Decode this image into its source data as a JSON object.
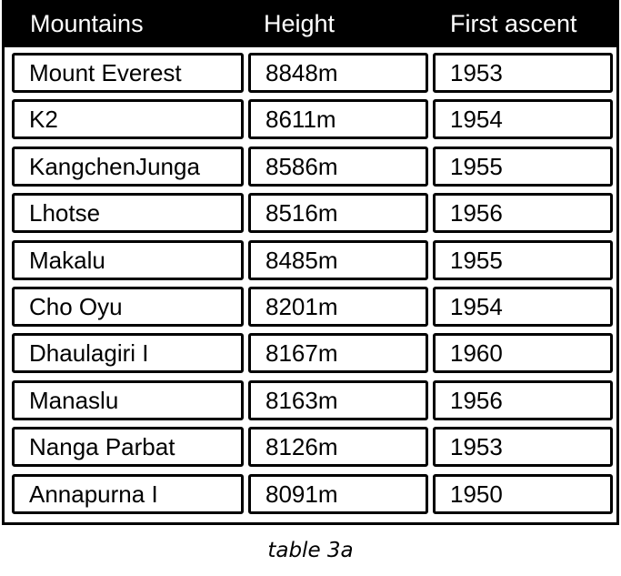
{
  "table": {
    "headers": [
      "Mountains",
      "Height",
      "First ascent"
    ],
    "rows": [
      [
        "Mount Everest",
        "8848m",
        "1953"
      ],
      [
        "K2",
        "8611m",
        "1954"
      ],
      [
        "KangchenJunga",
        "8586m",
        "1955"
      ],
      [
        "Lhotse",
        "8516m",
        "1956"
      ],
      [
        "Makalu",
        "8485m",
        "1955"
      ],
      [
        "Cho Oyu",
        "8201m",
        "1954"
      ],
      [
        "Dhaulagiri I",
        "8167m",
        "1960"
      ],
      [
        "Manaslu",
        "8163m",
        "1956"
      ],
      [
        "Nanga Parbat",
        "8126m",
        "1953"
      ],
      [
        "Annapurna I",
        "8091m",
        "1950"
      ]
    ]
  },
  "caption": "table 3a"
}
